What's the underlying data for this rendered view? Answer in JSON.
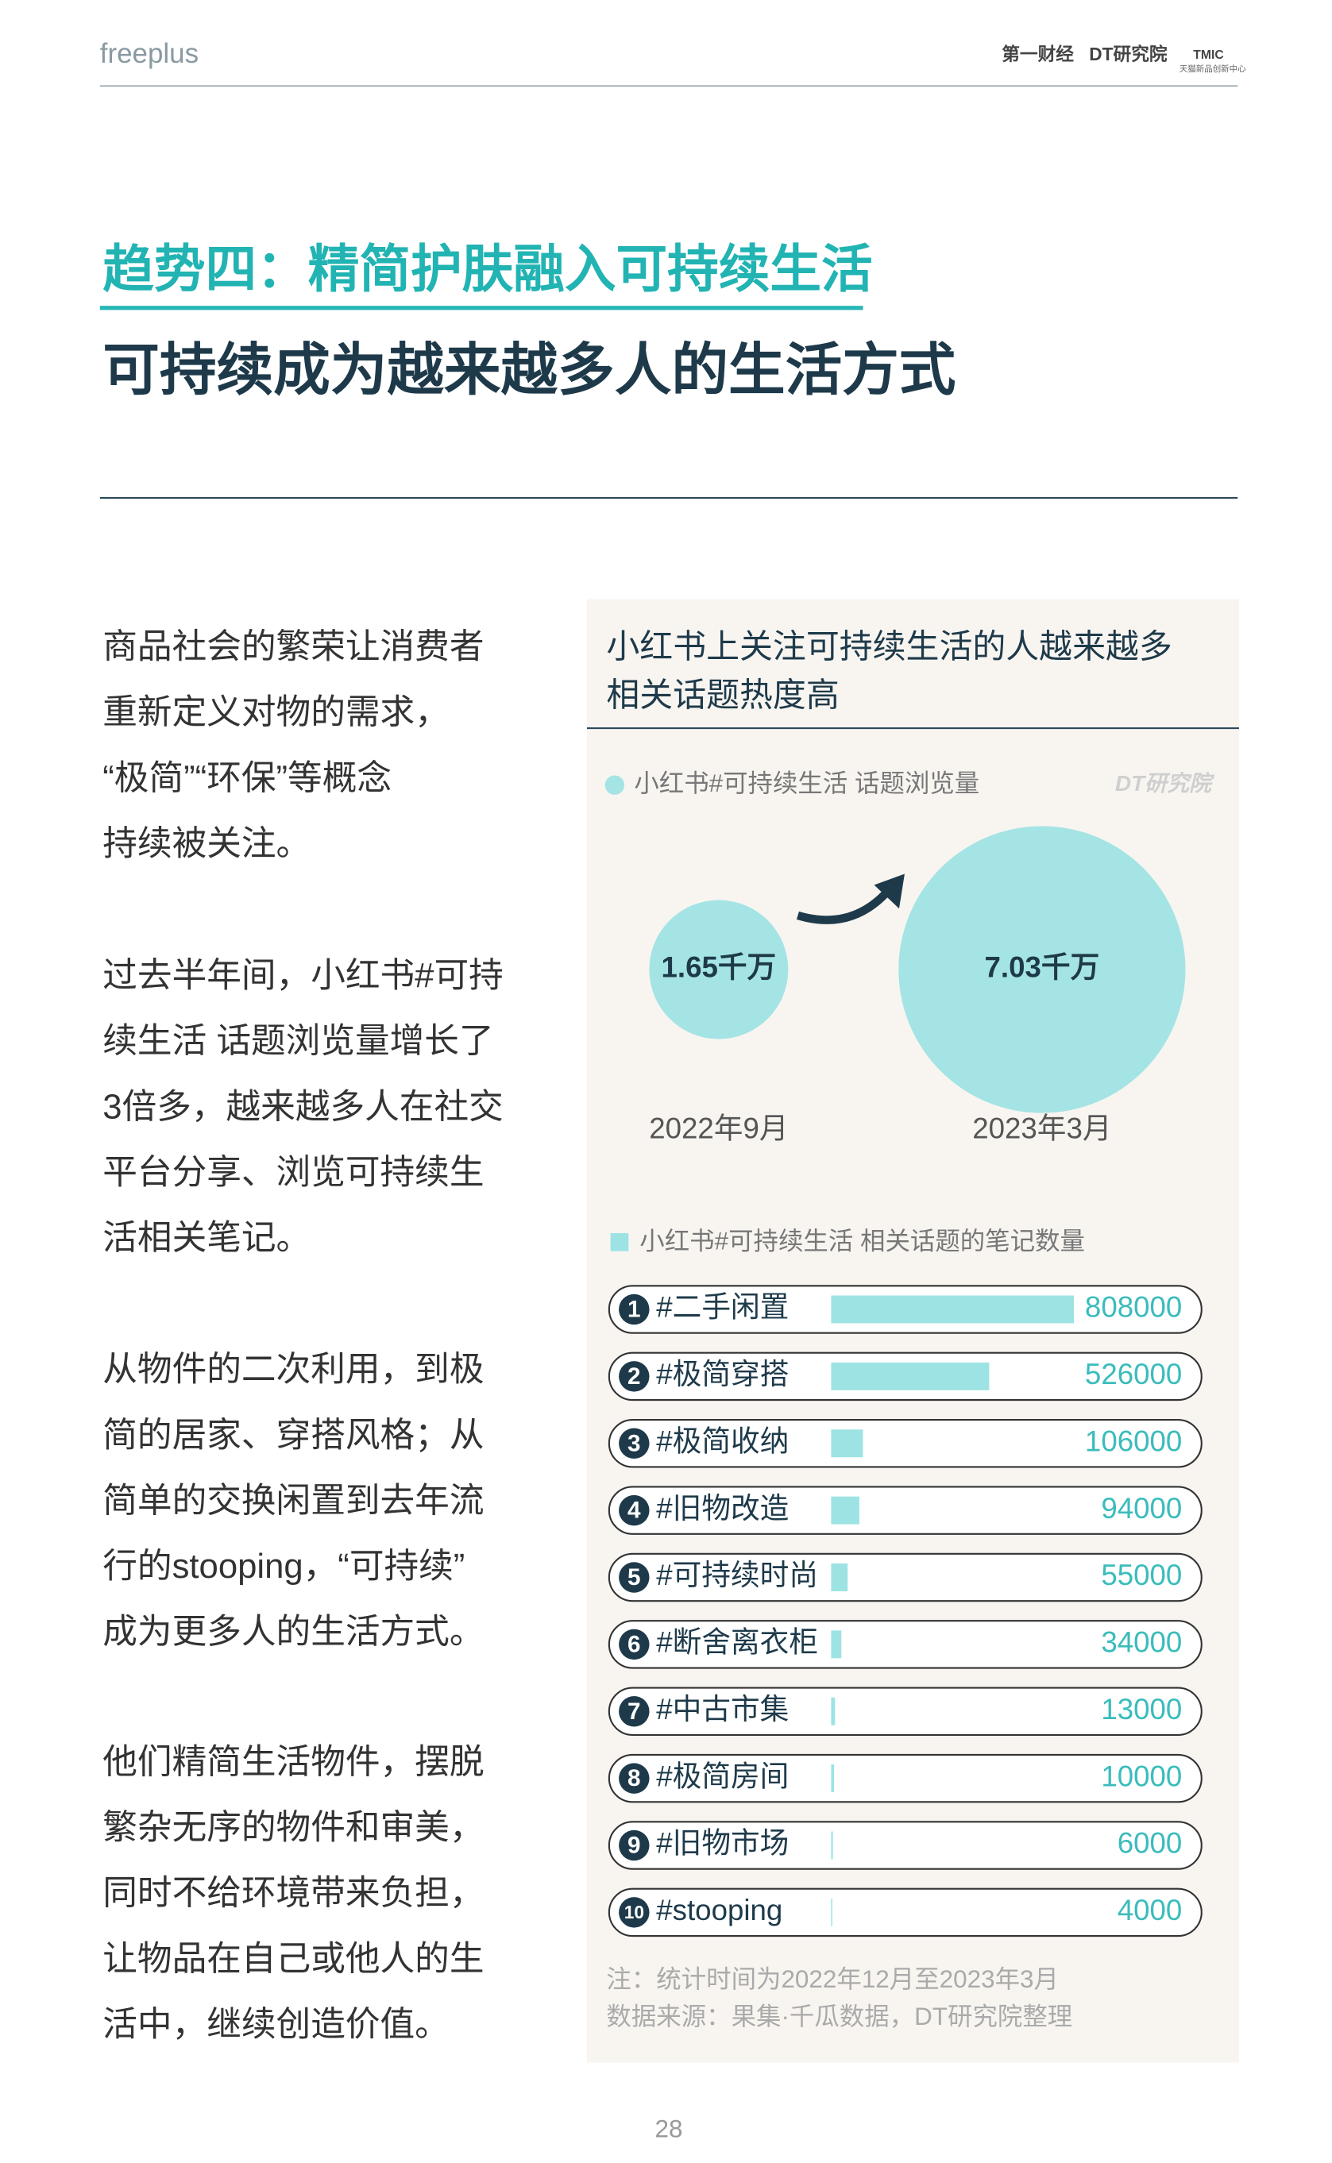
{
  "header": {
    "logo_left": "freeplus",
    "logos_right": [
      "第一财经",
      "DT研究院",
      "TMIC"
    ],
    "logo_caption": "天猫新品创新中心"
  },
  "title": "趋势四：精简护肤融入可持续生活",
  "subtitle": "可持续成为越来越多人的生活方式",
  "paragraphs": [
    [
      "商品社会的繁荣让消费者",
      "重新定义对物的需求，",
      "“极简”“环保”等概念",
      "持续被关注。"
    ],
    [
      "过去半年间，小红书#可持",
      "续生活 话题浏览量增长了",
      "3倍多，越来越多人在社交",
      "平台分享、浏览可持续生",
      "活相关笔记。"
    ],
    [
      "从物件的二次利用，到极",
      "简的居家、穿搭风格；从",
      "简单的交换闲置到去年流",
      "行的stooping，“可持续”",
      "成为更多人的生活方式。"
    ],
    [
      "他们精简生活物件，摆脱",
      "繁杂无序的物件和审美，",
      "同时不给环境带来负担，",
      "让物品在自己或他人的生",
      "活中，继续创造价值。"
    ]
  ],
  "panel": {
    "title": [
      "小红书上关注可持续生活的人越来越多",
      "相关话题热度高"
    ],
    "watermark": "DT研究院",
    "notes": [
      "注：统计时间为2022年12月至2023年3月",
      "数据来源：果集·千瓜数据，DT研究院整理"
    ]
  },
  "chart_data": [
    {
      "type": "bubble",
      "legend": "小红书#可持续生活 话题浏览量",
      "categories": [
        "2022年9月",
        "2023年3月"
      ],
      "values": [
        1.65,
        7.03
      ],
      "value_labels": [
        "1.65千万",
        "7.03千万"
      ],
      "color": "#a5e4e4"
    },
    {
      "type": "bar",
      "legend": "小红书#可持续生活 相关话题的笔记数量",
      "ranks": [
        1,
        2,
        3,
        4,
        5,
        6,
        7,
        8,
        9,
        10
      ],
      "categories": [
        "#二手闲置",
        "#极简穿搭",
        "#极简收纳",
        "#旧物改造",
        "#可持续时尚",
        "#断舍离衣柜",
        "#中古市集",
        "#极简房间",
        "#旧物市场",
        "#stooping"
      ],
      "values": [
        808000,
        526000,
        106000,
        94000,
        55000,
        34000,
        13000,
        10000,
        6000,
        4000
      ],
      "xlim": [
        0,
        808000
      ],
      "color": "#9de3e3"
    }
  ],
  "page_number": "28"
}
